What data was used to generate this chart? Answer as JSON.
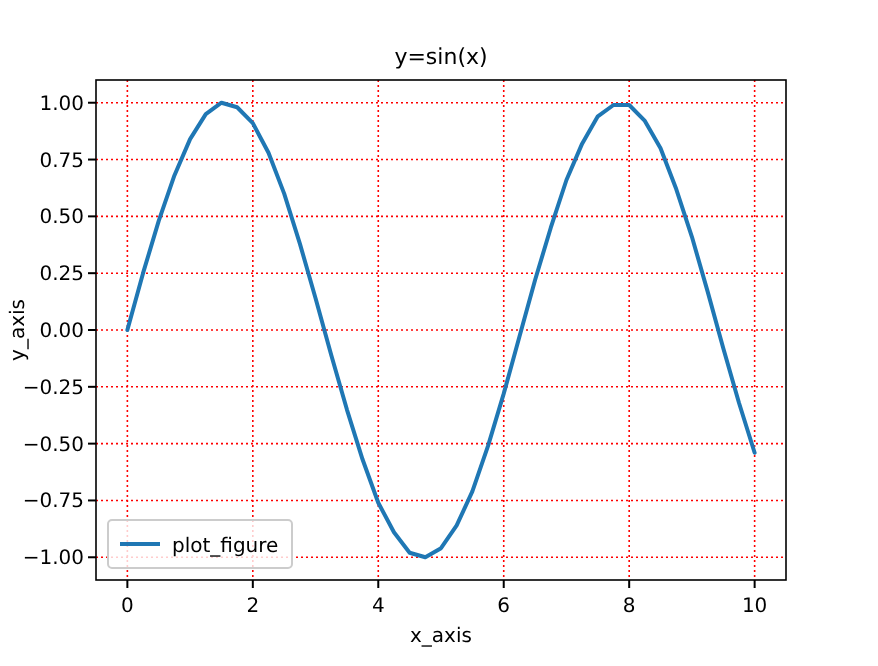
{
  "chart_data": {
    "type": "line",
    "title": "y=sin(x)",
    "xlabel": "x_axis",
    "ylabel": "y_axis",
    "x": [
      0,
      0.25,
      0.5,
      0.75,
      1,
      1.25,
      1.5,
      1.75,
      2,
      2.25,
      2.5,
      2.75,
      3,
      3.25,
      3.5,
      3.75,
      4,
      4.25,
      4.5,
      4.75,
      5,
      5.25,
      5.5,
      5.75,
      6,
      6.25,
      6.5,
      6.75,
      7,
      7.25,
      7.5,
      7.75,
      8,
      8.25,
      8.5,
      8.75,
      9,
      9.25,
      9.5,
      9.75,
      10
    ],
    "series": [
      {
        "name": "plot_figure",
        "color": "#1f77b4",
        "values": [
          0,
          0.25,
          0.48,
          0.68,
          0.84,
          0.95,
          1.0,
          0.98,
          0.91,
          0.78,
          0.6,
          0.38,
          0.14,
          -0.11,
          -0.35,
          -0.57,
          -0.76,
          -0.89,
          -0.98,
          -1.0,
          -0.96,
          -0.86,
          -0.71,
          -0.51,
          -0.28,
          -0.03,
          0.22,
          0.45,
          0.66,
          0.82,
          0.94,
          0.99,
          0.99,
          0.92,
          0.8,
          0.62,
          0.41,
          0.17,
          -0.08,
          -0.32,
          -0.54
        ]
      }
    ],
    "xlim": [
      -0.5,
      10.5
    ],
    "ylim": [
      -1.1,
      1.1
    ],
    "xticks": [
      0,
      2,
      4,
      6,
      8,
      10
    ],
    "yticks": [
      {
        "value": 1,
        "label": "1.00"
      },
      {
        "value": 0.75,
        "label": "0.75"
      },
      {
        "value": 0.5,
        "label": "0.50"
      },
      {
        "value": 0.25,
        "label": "0.25"
      },
      {
        "value": 0,
        "label": "0.00"
      },
      {
        "value": -0.25,
        "label": "−0.25"
      },
      {
        "value": -0.5,
        "label": "−0.50"
      },
      {
        "value": -0.75,
        "label": "−0.75"
      },
      {
        "value": -1,
        "label": "−1.00"
      }
    ],
    "grid": true,
    "legend": "bottom left",
    "line_style": "solid",
    "marker": "none"
  }
}
